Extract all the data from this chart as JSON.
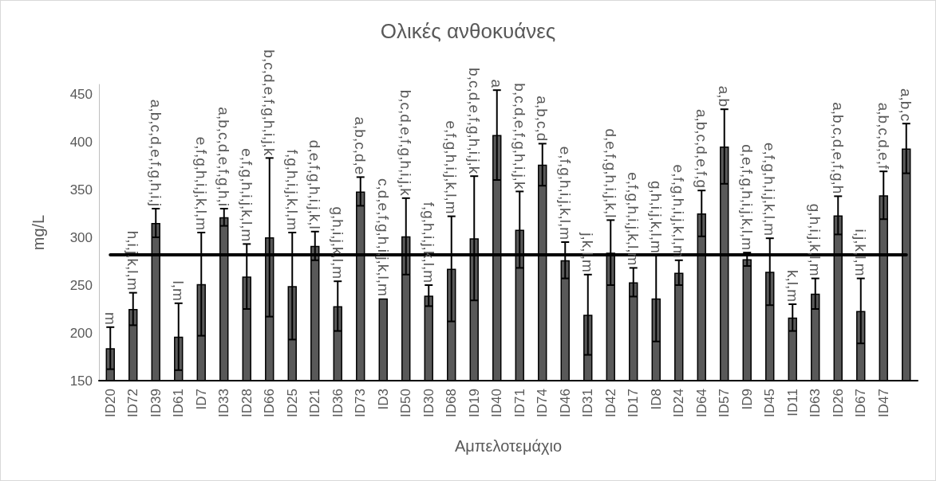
{
  "chart_data": {
    "type": "bar",
    "title": "Ολικές ανθοκυάνες",
    "xlabel": "Αμπελοτεμάχιο",
    "ylabel": "mg/L",
    "categories": [
      "ID20",
      "ID72",
      "ID39",
      "ID61",
      "ID7",
      "ID33",
      "ID28",
      "ID66",
      "ID25",
      "ID21",
      "ID36",
      "ID73",
      "ID3",
      "ID50",
      "ID30",
      "ID68",
      "ID19",
      "ID40",
      "ID71",
      "ID74",
      "ID46",
      "ID31",
      "ID42",
      "ID17",
      "ID8",
      "ID24",
      "ID64",
      "ID57",
      "ID9",
      "ID45",
      "ID11",
      "ID63",
      "ID26",
      "ID67",
      "ID47",
      null
    ],
    "values": [
      184,
      225,
      315,
      196,
      251,
      321,
      259,
      300,
      249,
      291,
      228,
      348,
      236,
      301,
      239,
      267,
      299,
      407,
      308,
      376,
      276,
      219,
      284,
      253,
      236,
      263,
      325,
      395,
      277,
      264,
      216,
      241,
      323,
      223,
      344,
      393
    ],
    "errors": [
      22,
      17,
      15,
      35,
      54,
      9,
      34,
      83,
      56,
      15,
      26,
      15,
      null,
      40,
      11,
      55,
      65,
      47,
      40,
      22,
      19,
      42,
      34,
      15,
      45,
      13,
      24,
      39,
      7,
      35,
      14,
      16,
      20,
      34,
      25,
      26
    ],
    "value_labels": [
      "m",
      "h,i,j,k,l,m",
      "a,b,c,d,e,f,g,h,i,j",
      "l,m",
      null,
      "a,b,c,d,e,f,g,h,i",
      "e,f,g,h,i,j,k,l,m",
      null,
      null,
      "d,e,f,g,h,i,j,k,l",
      "g,h,i,j,k,l,m",
      "a,b,c,d,e",
      "c,d,e,f,g,h,i,j,k,l,m",
      "b,c,d,e,f,g,h,i,j,k",
      "f,g,h,i,j,k,l,m",
      null,
      null,
      "a",
      "b,c,d,e,f,g,h,i,j,k",
      "a,b,c,d",
      "e,f,g,h,i,j,k,l,m",
      "j,k,l,m",
      "d,e,f,g,h,i,j,k,l",
      "e,f,g,h,i,j,k,l,m",
      "g,h,i,j,k,l,m",
      "e,f,g,h,i,j,k,l,m",
      "a,b,c,d,e,f,g",
      "a,b",
      "d,e,f,g,h,i,j,k,l,m",
      "e,f,g,h,i,j,k,l,m",
      "k,l,m",
      "g,h,i,j,k,l,m",
      "a,b,c,d,e,f,g,h",
      "i,j,k,l,m",
      "a,b,c,d,e,f",
      "a,b,c"
    ],
    "annotations": [
      {
        "text": "e,f,g,h,i,j,k,l,m",
        "x": "ID7",
        "y": 305
      },
      {
        "text": "b,c,d,e,f,g,h,i,j,k",
        "x": "ID66",
        "y": 383
      },
      {
        "text": "f,g,h,i,j,k,l,m",
        "x": "ID25",
        "y": 305
      },
      {
        "text": "e,f,g,h,i,j,k,l,m",
        "x": "ID68",
        "y": 322
      },
      {
        "text": "b,c,d,e,f,g,h,i,j,k",
        "x": "ID19",
        "y": 364
      }
    ],
    "color": "#595959",
    "ylim": [
      150,
      460
    ],
    "yticks": [
      150,
      200,
      250,
      300,
      350,
      400,
      450
    ],
    "ref_lines": [
      {
        "axis": "y",
        "value": 282,
        "color": "#000000"
      }
    ]
  }
}
